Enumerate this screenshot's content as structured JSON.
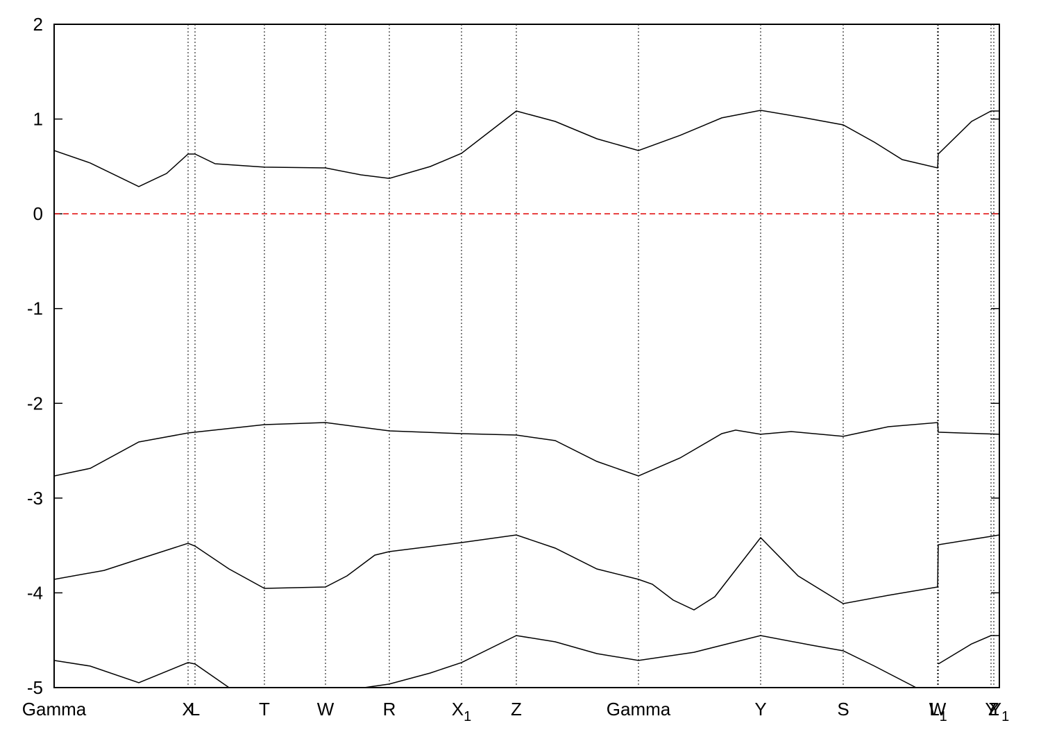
{
  "chart_data": {
    "type": "line",
    "xlim": [
      0,
      13.62
    ],
    "ylim": [
      -5,
      2
    ],
    "yticks": [
      -5,
      -4,
      -3,
      -2,
      -1,
      0,
      1,
      2
    ],
    "xticks": [
      {
        "value": 0,
        "label": "Gamma"
      },
      {
        "value": 1.93,
        "label": "X"
      },
      {
        "value": 2.03,
        "label": "L"
      },
      {
        "value": 3.03,
        "label": "T"
      },
      {
        "value": 3.91,
        "label": "W"
      },
      {
        "value": 4.83,
        "label": "R"
      },
      {
        "value": 5.87,
        "label": "X1"
      },
      {
        "value": 6.66,
        "label": "Z"
      },
      {
        "value": 8.42,
        "label": "Gamma"
      },
      {
        "value": 10.18,
        "label": "Y"
      },
      {
        "value": 11.37,
        "label": "S"
      },
      {
        "value": 12.73,
        "label": "W"
      },
      {
        "value": 12.74,
        "label": "L1"
      },
      {
        "value": 13.5,
        "label": "Y"
      },
      {
        "value": 13.54,
        "label": "Z"
      },
      {
        "value": 13.62,
        "label": "Y1"
      }
    ],
    "hline": {
      "value": 0,
      "color": "#e00000"
    },
    "series": [
      {
        "color": "#000000",
        "x": [
          0,
          0.52,
          1.22,
          1.62,
          1.93,
          2.03,
          2.32,
          3.03,
          3.91,
          4.42,
          4.83,
          5.42,
          5.87,
          6.66,
          7.22,
          7.82,
          8.42,
          9.02,
          9.62,
          10.18,
          10.82,
          11.37,
          11.82,
          12.22,
          12.73,
          12.74,
          13.22,
          13.5,
          13.62
        ],
        "values": [
          0.667,
          0.536,
          0.287,
          0.426,
          0.631,
          0.631,
          0.528,
          0.492,
          0.484,
          0.411,
          0.374,
          0.499,
          0.638,
          1.085,
          0.975,
          0.792,
          0.667,
          0.828,
          1.012,
          1.092,
          1.012,
          0.938,
          0.755,
          0.572,
          0.484,
          0.631,
          0.975,
          1.085,
          1.085
        ]
      },
      {
        "color": "#000000",
        "x": [
          0,
          0.52,
          1.22,
          1.93,
          2.03,
          3.03,
          3.91,
          4.83,
          5.87,
          6.66,
          7.22,
          7.82,
          8.42,
          9.02,
          9.62,
          9.82,
          10.18,
          10.62,
          11.37,
          12.02,
          12.73,
          12.74,
          13.62
        ],
        "values": [
          -2.767,
          -2.686,
          -2.408,
          -2.313,
          -2.305,
          -2.225,
          -2.203,
          -2.291,
          -2.32,
          -2.335,
          -2.393,
          -2.613,
          -2.767,
          -2.576,
          -2.32,
          -2.283,
          -2.327,
          -2.298,
          -2.349,
          -2.247,
          -2.203,
          -2.305,
          -2.327
        ]
      },
      {
        "color": "#000000",
        "x": [
          0,
          0.72,
          1.22,
          1.93,
          2.03,
          2.52,
          3.03,
          3.91,
          4.22,
          4.62,
          4.83,
          5.87,
          6.66,
          7.22,
          7.82,
          8.42,
          8.62,
          8.92,
          9.22,
          9.52,
          10.18,
          10.72,
          11.37,
          12.02,
          12.73,
          12.74,
          13.5,
          13.62
        ],
        "values": [
          -3.858,
          -3.763,
          -3.645,
          -3.477,
          -3.506,
          -3.748,
          -3.953,
          -3.938,
          -3.821,
          -3.602,
          -3.565,
          -3.47,
          -3.389,
          -3.528,
          -3.748,
          -3.858,
          -3.909,
          -4.077,
          -4.18,
          -4.041,
          -3.418,
          -3.821,
          -4.114,
          -4.026,
          -3.938,
          -3.492,
          -3.404,
          -3.389
        ]
      },
      {
        "color": "#000000",
        "x": [
          0,
          0.52,
          1.22,
          1.93,
          2.03,
          2.52,
          3.5,
          4.47,
          4.83,
          5.42,
          5.87,
          6.66,
          7.22,
          7.82,
          8.42,
          9.22,
          10.18,
          10.92,
          11.37,
          11.82,
          12.42,
          12.6,
          12.74,
          13.22,
          13.5,
          13.62
        ],
        "values": [
          -4.714,
          -4.773,
          -4.949,
          -4.736,
          -4.751,
          -5,
          null,
          -5,
          -4.963,
          -4.846,
          -4.736,
          -4.451,
          -4.517,
          -4.641,
          -4.714,
          -4.627,
          -4.451,
          -4.553,
          -4.612,
          -4.773,
          -5,
          null,
          -4.751,
          -4.539,
          -4.451,
          -4.451
        ]
      }
    ]
  }
}
